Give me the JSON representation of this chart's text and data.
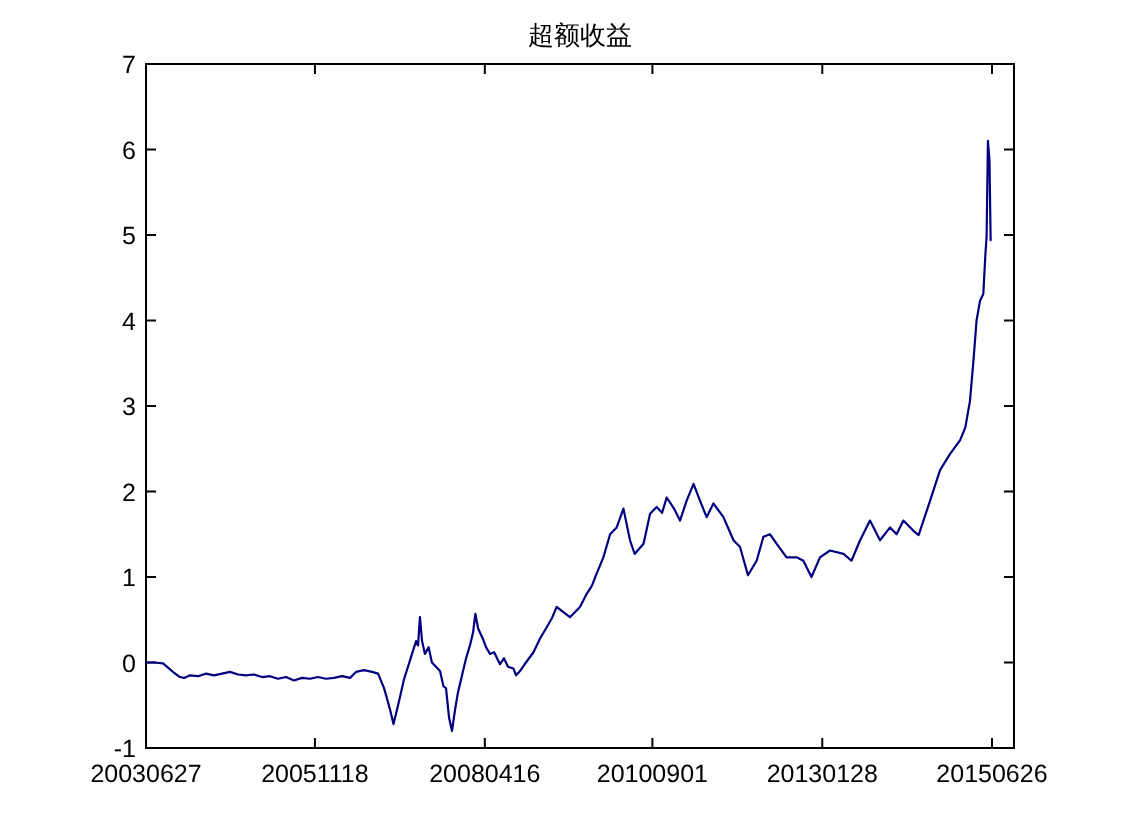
{
  "chart_data": {
    "type": "line",
    "title": "超额收益",
    "color": "#000080",
    "x": [
      "2003-06-27",
      "2003-08-07",
      "2003-09-23",
      "2003-10-19",
      "2003-11-19",
      "2003-12-20",
      "2004-01-10",
      "2004-02-10",
      "2004-03-22",
      "2004-05-03",
      "2004-06-13",
      "2004-07-25",
      "2004-09-04",
      "2004-10-16",
      "2004-11-26",
      "2005-01-06",
      "2005-02-17",
      "2005-03-30",
      "2005-05-11",
      "2005-06-21",
      "2005-08-02",
      "2005-09-12",
      "2005-10-24",
      "2005-12-04",
      "2006-01-14",
      "2006-02-25",
      "2006-04-07",
      "2006-05-19",
      "2006-06-19",
      "2006-07-30",
      "2006-09-10",
      "2006-10-11",
      "2006-11-11",
      "2006-12-12",
      "2006-12-30",
      "2007-01-12",
      "2007-02-02",
      "2007-02-22",
      "2007-03-15",
      "2007-04-05",
      "2007-04-26",
      "2007-05-06",
      "2007-05-16",
      "2007-05-27",
      "2007-06-11",
      "2007-06-30",
      "2007-07-17",
      "2007-08-07",
      "2007-08-28",
      "2007-09-15",
      "2007-09-28",
      "2007-10-14",
      "2007-10-29",
      "2007-11-14",
      "2007-11-29",
      "2007-12-20",
      "2008-01-10",
      "2008-01-30",
      "2008-02-15",
      "2008-02-27",
      "2008-03-12",
      "2008-04-09",
      "2008-04-22",
      "2008-05-13",
      "2008-06-03",
      "2008-07-04",
      "2008-07-24",
      "2008-08-14",
      "2008-09-11",
      "2008-09-25",
      "2008-10-15",
      "2008-11-15",
      "2008-12-24",
      "2009-01-27",
      "2009-03-02",
      "2009-03-30",
      "2009-04-23",
      "2009-05-21",
      "2009-07-01",
      "2009-08-22",
      "2009-09-25",
      "2009-10-23",
      "2009-11-16",
      "2009-12-21",
      "2010-01-25",
      "2010-02-28",
      "2010-04-04",
      "2010-05-08",
      "2010-06-01",
      "2010-07-17",
      "2010-08-20",
      "2010-09-23",
      "2010-10-21",
      "2010-11-14",
      "2010-12-22",
      "2011-01-22",
      "2011-02-25",
      "2011-04-02",
      "2011-05-06",
      "2011-06-09",
      "2011-07-14",
      "2011-09-04",
      "2011-10-26",
      "2011-11-29",
      "2012-01-09",
      "2012-02-23",
      "2012-03-29",
      "2012-05-02",
      "2012-06-05",
      "2012-07-27",
      "2012-09-17",
      "2012-10-22",
      "2012-12-03",
      "2013-01-16",
      "2013-03-09",
      "2013-05-18",
      "2013-06-28",
      "2013-08-12",
      "2013-10-02",
      "2013-11-23",
      "2014-01-14",
      "2014-02-17",
      "2014-03-24",
      "2014-05-15",
      "2014-06-11",
      "2014-08-09",
      "2014-09-30",
      "2014-11-21",
      "2015-01-12",
      "2015-02-08",
      "2015-03-04",
      "2015-03-22",
      "2015-04-07",
      "2015-04-25",
      "2015-05-12",
      "2015-05-23",
      "2015-05-29",
      "2015-06-05",
      "2015-06-13",
      "2015-06-19"
    ],
    "values": [
      0.0,
      0.0,
      -0.01,
      -0.06,
      -0.12,
      -0.17,
      -0.18,
      -0.15,
      -0.16,
      -0.13,
      -0.15,
      -0.13,
      -0.11,
      -0.14,
      -0.15,
      -0.14,
      -0.17,
      -0.16,
      -0.19,
      -0.17,
      -0.21,
      -0.18,
      -0.19,
      -0.17,
      -0.19,
      -0.18,
      -0.16,
      -0.18,
      -0.11,
      -0.09,
      -0.11,
      -0.13,
      -0.3,
      -0.55,
      -0.72,
      -0.6,
      -0.4,
      -0.2,
      -0.05,
      0.1,
      0.25,
      0.2,
      0.53,
      0.25,
      0.1,
      0.18,
      0.0,
      -0.05,
      -0.1,
      -0.28,
      -0.3,
      -0.65,
      -0.8,
      -0.55,
      -0.35,
      -0.15,
      0.05,
      0.2,
      0.35,
      0.57,
      0.4,
      0.26,
      0.18,
      0.1,
      0.12,
      -0.02,
      0.05,
      -0.05,
      -0.07,
      -0.15,
      -0.1,
      0.0,
      0.12,
      0.28,
      0.41,
      0.52,
      0.65,
      0.6,
      0.53,
      0.65,
      0.8,
      0.9,
      1.04,
      1.23,
      1.5,
      1.58,
      1.8,
      1.43,
      1.27,
      1.39,
      1.74,
      1.82,
      1.75,
      1.93,
      1.8,
      1.66,
      1.89,
      2.09,
      1.89,
      1.7,
      1.86,
      1.7,
      1.43,
      1.35,
      1.02,
      1.19,
      1.47,
      1.5,
      1.39,
      1.23,
      1.23,
      1.19,
      1.0,
      1.23,
      1.31,
      1.27,
      1.19,
      1.43,
      1.66,
      1.43,
      1.58,
      1.5,
      1.66,
      1.54,
      1.49,
      1.89,
      2.25,
      2.44,
      2.6,
      2.75,
      3.06,
      3.53,
      4.0,
      4.23,
      4.31,
      4.78,
      4.98,
      6.1,
      5.87,
      4.94
    ],
    "xlim": [
      "2003-06-27",
      "2015-10-18"
    ],
    "xticks": [
      {
        "value": "2003-06-27",
        "label": "20030627"
      },
      {
        "value": "2005-11-18",
        "label": "20051118"
      },
      {
        "value": "2008-04-16",
        "label": "20080416"
      },
      {
        "value": "2010-09-01",
        "label": "20100901"
      },
      {
        "value": "2013-01-28",
        "label": "20130128"
      },
      {
        "value": "2015-06-26",
        "label": "20150626"
      }
    ],
    "ylim": [
      -1,
      7
    ],
    "yticks": [
      -1,
      0,
      1,
      2,
      3,
      4,
      5,
      6,
      7
    ]
  }
}
